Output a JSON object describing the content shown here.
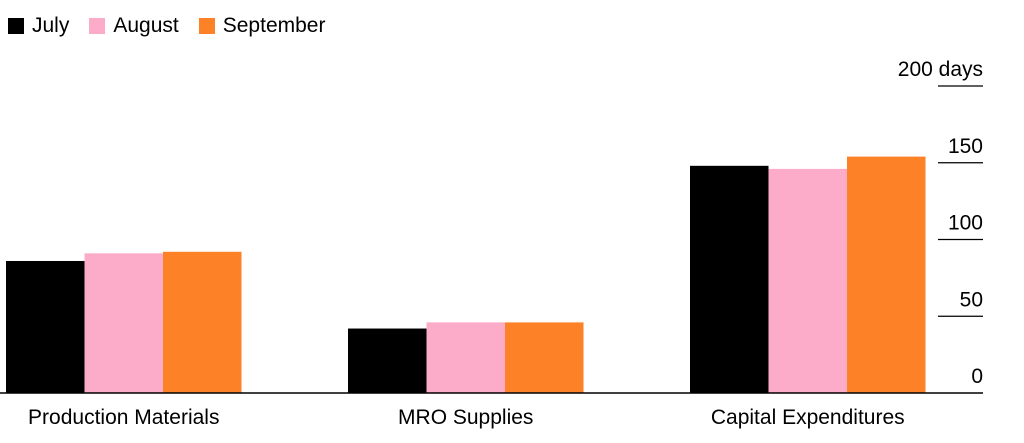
{
  "chart_data": {
    "type": "bar",
    "categories": [
      "Production Materials",
      "MRO Supplies",
      "Capital Expenditures"
    ],
    "series": [
      {
        "name": "July",
        "color": "#000000",
        "values": [
          86,
          42,
          148
        ]
      },
      {
        "name": "August",
        "color": "#fcabc8",
        "values": [
          91,
          46,
          146
        ]
      },
      {
        "name": "September",
        "color": "#fd8126",
        "values": [
          92,
          46,
          154
        ]
      }
    ],
    "ylim": [
      0,
      200
    ],
    "yticks": [
      0,
      50,
      100,
      150,
      200
    ],
    "ytick_labels": [
      "0",
      "50",
      "100",
      "150",
      "200 days"
    ],
    "legend": "top-left",
    "grid": false
  }
}
